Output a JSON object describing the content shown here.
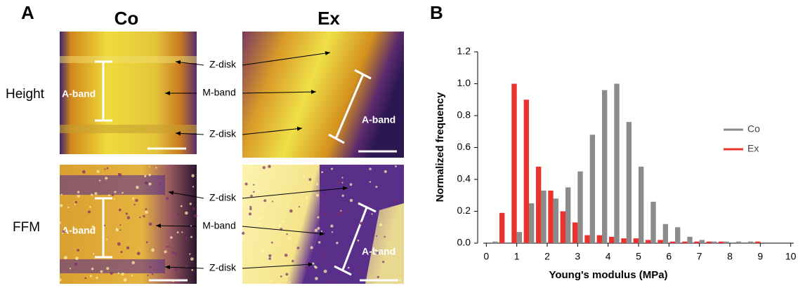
{
  "panel_a": {
    "label": "A",
    "columns": [
      "Co",
      "Ex"
    ],
    "rows": [
      "Height",
      "FFM"
    ],
    "annotations": [
      [
        "Z-disk",
        "M-band",
        "Z-disk"
      ],
      [
        "Z-disk",
        "M-band",
        "Z-disk"
      ]
    ],
    "band_labels": [
      "A-band",
      "A-band",
      "A-band",
      "A-band"
    ]
  },
  "panel_b_label": "B",
  "chart_data": {
    "type": "histogram",
    "x_label": "Young's modulus (MPa)",
    "y_label": "Normalized frequency",
    "bins": [
      0,
      0.4,
      0.8,
      1.2,
      1.6,
      2,
      2.4,
      2.8,
      3.2,
      3.6,
      4,
      4.4,
      4.8,
      5.2,
      5.6,
      6,
      6.4,
      6.8,
      7.2,
      7.6,
      8,
      8.4,
      8.8,
      9.2,
      9.6,
      10
    ],
    "series": [
      {
        "name": "Co",
        "color": "#8c8c8c",
        "values": [
          0.01,
          0,
          0.07,
          0.25,
          0.33,
          0.28,
          0.35,
          0.45,
          0.68,
          0.96,
          1.0,
          0.76,
          0.48,
          0.26,
          0.12,
          0.1,
          0.04,
          0.02,
          0.01,
          0.01,
          0.01,
          0.01,
          0,
          0,
          0
        ]
      },
      {
        "name": "Ex",
        "color": "#e8332e",
        "values": [
          0,
          0.19,
          1.0,
          0.9,
          0.48,
          0.33,
          0.2,
          0.13,
          0.05,
          0.05,
          0.04,
          0.03,
          0.03,
          0.02,
          0.02,
          0.01,
          0.01,
          0.01,
          0.01,
          0.01,
          0,
          0,
          0.01,
          0,
          0
        ]
      }
    ],
    "xlim": [
      -0.1,
      10.1
    ],
    "xticks": [
      0,
      1,
      2,
      3,
      4,
      5,
      6,
      7,
      8,
      9,
      10
    ],
    "ylim": [
      0,
      1.2
    ],
    "yticks": [
      {
        "value": 0,
        "label": "0.0"
      },
      0.2,
      0.4,
      0.6,
      0.8,
      {
        "value": 1,
        "label": "1.0"
      },
      1.2
    ],
    "legend": "right"
  }
}
